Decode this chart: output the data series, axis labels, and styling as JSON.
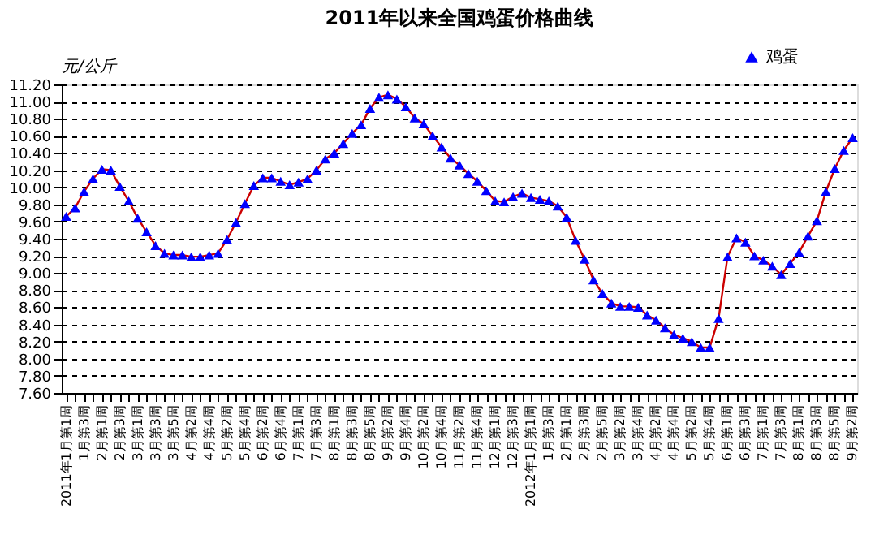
{
  "chart_data": {
    "type": "line",
    "title": "2011年以来全国鸡蛋价格曲线",
    "ylabel": "元/公斤",
    "categories": [
      "2011年1月第1周",
      null,
      "1月第3周",
      null,
      "2月第1周",
      null,
      "2月第3周",
      null,
      "3月第1周",
      null,
      "3月第3周",
      null,
      "3月第5周",
      null,
      "4月第2周",
      null,
      "4月第4周",
      null,
      "5月第2周",
      null,
      "5月第4周",
      null,
      "6月第2周",
      null,
      "6月第4周",
      null,
      "7月第1周",
      null,
      "7月第3周",
      null,
      "8月第1周",
      null,
      "8月第3周",
      null,
      "8月第5周",
      null,
      "9月第2周",
      null,
      "9月第4周",
      null,
      "10月第2周",
      null,
      "10月第4周",
      null,
      "11月第2周",
      null,
      "11月第4周",
      null,
      "12月第1周",
      null,
      "12月第3周",
      null,
      "2012年1月第1周",
      null,
      "1月第3周",
      null,
      "2月第1周",
      null,
      "2月第3周",
      null,
      "2月第5周",
      null,
      "3月第2周",
      null,
      "3月第4周",
      null,
      "4月第2周",
      null,
      "4月第4周",
      null,
      "5月第2周",
      null,
      "5月第4周",
      null,
      "6月第1周",
      null,
      "6月第3周",
      null,
      "7月第1周",
      null,
      "7月第3周",
      null,
      "8月第1周",
      null,
      "8月第3周",
      null,
      "8月第5周",
      null,
      "9月第2周"
    ],
    "series": [
      {
        "name": "鸡蛋",
        "color": "#0000ff",
        "values": [
          9.66,
          9.76,
          9.95,
          10.1,
          10.21,
          10.2,
          10.01,
          9.84,
          9.64,
          9.48,
          9.32,
          9.23,
          9.21,
          9.21,
          9.19,
          9.19,
          9.21,
          9.23,
          9.39,
          9.59,
          9.81,
          10.02,
          10.11,
          10.11,
          10.07,
          10.03,
          10.06,
          10.1,
          10.2,
          10.33,
          10.4,
          10.51,
          10.63,
          10.73,
          10.92,
          11.05,
          11.08,
          11.03,
          10.94,
          10.81,
          10.74,
          10.6,
          10.47,
          10.34,
          10.26,
          10.16,
          10.07,
          9.96,
          9.84,
          9.83,
          9.89,
          9.93,
          9.88,
          9.86,
          9.84,
          9.78,
          9.65,
          9.38,
          9.16,
          8.92,
          8.76,
          8.65,
          8.61,
          8.61,
          8.6,
          8.51,
          8.45,
          8.36,
          8.28,
          8.24,
          8.2,
          8.13,
          8.13,
          8.47,
          9.19,
          9.41,
          9.36,
          9.2,
          9.15,
          9.08,
          8.98,
          9.11,
          9.24,
          9.43,
          9.61,
          9.95,
          10.22,
          10.43,
          10.58
        ]
      }
    ],
    "ylim": [
      7.6,
      11.2
    ],
    "yticks": [
      {
        "value": 7.6,
        "label": "7.60"
      },
      {
        "value": 7.8,
        "label": "7.80"
      },
      {
        "value": 8.0,
        "label": "8.00"
      },
      {
        "value": 8.2,
        "label": "8.20"
      },
      {
        "value": 8.4,
        "label": "8.40"
      },
      {
        "value": 8.6,
        "label": "8.60"
      },
      {
        "value": 8.8,
        "label": "8.80"
      },
      {
        "value": 9.0,
        "label": "9.00"
      },
      {
        "value": 9.2,
        "label": "9.20"
      },
      {
        "value": 9.4,
        "label": "9.40"
      },
      {
        "value": 9.6,
        "label": "9.60"
      },
      {
        "value": 9.8,
        "label": "9.80"
      },
      {
        "value": 10.0,
        "label": "10.00"
      },
      {
        "value": 10.2,
        "label": "10.20"
      },
      {
        "value": 10.4,
        "label": "10.40"
      },
      {
        "value": 10.6,
        "label": "10.60"
      },
      {
        "value": 10.8,
        "label": "10.80"
      },
      {
        "value": 11.0,
        "label": "11.00"
      },
      {
        "value": 11.2,
        "label": "11.20"
      }
    ],
    "grid": "y",
    "legend": "top right",
    "marker": "triangle",
    "line_style": "solid"
  }
}
